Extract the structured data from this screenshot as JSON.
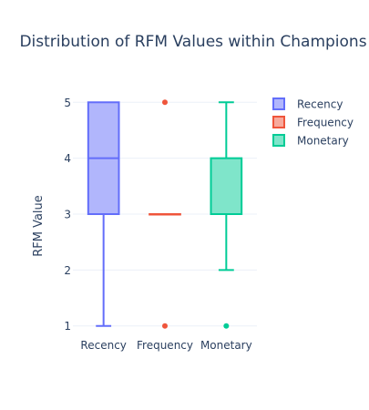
{
  "chart_data": {
    "type": "box",
    "title": "Distribution of RFM Values within Champions",
    "xlabel": "",
    "ylabel": "RFM Value",
    "ylim": [
      0.8,
      5.2
    ],
    "yticks": [
      1,
      2,
      3,
      4,
      5
    ],
    "categories": [
      "Recency",
      "Frequency",
      "Monetary"
    ],
    "grid": true,
    "legend_position": "top-right",
    "series": [
      {
        "name": "Recency",
        "color": "#636efa",
        "fill": "rgba(99,110,250,0.5)",
        "min": 1,
        "q1": 3,
        "median": 4,
        "q3": 5,
        "max": 5,
        "outliers": []
      },
      {
        "name": "Frequency",
        "color": "#EF553B",
        "fill": "rgba(239,85,59,0.5)",
        "min": 3,
        "q1": 3,
        "median": 3,
        "q3": 3,
        "max": 3,
        "outliers": [
          1,
          5
        ]
      },
      {
        "name": "Monetary",
        "color": "#00cc96",
        "fill": "rgba(0,204,150,0.5)",
        "min": 2,
        "q1": 3,
        "median": 3,
        "q3": 4,
        "max": 5,
        "outliers": [
          1
        ]
      }
    ]
  }
}
